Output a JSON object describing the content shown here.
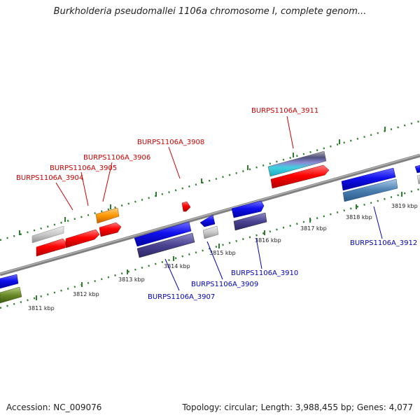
{
  "title": "Burkholderia pseudomallei 1106a chromosome I, complete genom...",
  "footer": {
    "accession": "Accession: NC_009076",
    "summary": "Topology: circular; Length: 3,988,455 bp; Genes: 4,077"
  },
  "colors": {
    "forward_label": "#cc0000",
    "reverse_label": "#0000bb",
    "tick": "#2e7d2e",
    "backbone": "#808080"
  },
  "ticks": [
    "3811 kbp",
    "3812 kbp",
    "3813 kbp",
    "3814 kbp",
    "3815 kbp",
    "3816 kbp",
    "3817 kbp",
    "3818 kbp",
    "3819 kbp"
  ],
  "forward_labels": [
    "BURPS1106A_3904",
    "BURPS1106A_3905",
    "BURPS1106A_3906",
    "BURPS1106A_3908",
    "BURPS1106A_3911"
  ],
  "reverse_labels": [
    "BURPS1106A_3907",
    "BURPS1106A_3909",
    "BURPS1106A_3910",
    "BURPS1106A_3912"
  ]
}
